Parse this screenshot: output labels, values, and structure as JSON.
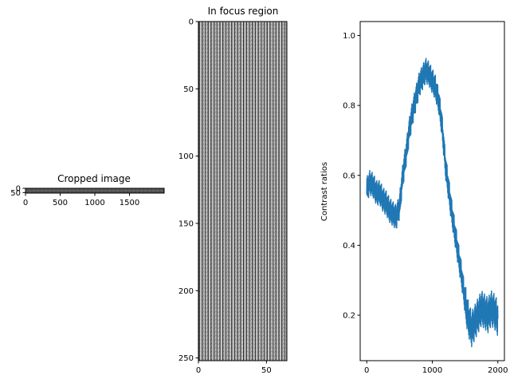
{
  "chart_data": [
    {
      "type": "heatmap",
      "title": "Cropped image",
      "xticks": [
        "0",
        "500",
        "1000",
        "1500"
      ],
      "yticks": [
        "0",
        "50"
      ],
      "xlim": [
        0,
        2000
      ],
      "ylim": [
        0,
        56
      ]
    },
    {
      "type": "heatmap",
      "title": "In focus region",
      "xticks": [
        "0",
        "50"
      ],
      "yticks": [
        "0",
        "50",
        "100",
        "150",
        "200",
        "250"
      ],
      "xlim": [
        0,
        65
      ],
      "ylim": [
        0,
        252
      ],
      "stripe_count": 30
    },
    {
      "type": "line",
      "title": "",
      "xlabel": "",
      "ylabel": "Contrast ratios",
      "xticks": [
        "0",
        "1000",
        "2000"
      ],
      "yticks": [
        "0.2",
        "0.4",
        "0.6",
        "0.8",
        "1.0"
      ],
      "xlim": [
        -100,
        2100
      ],
      "ylim": [
        0.07,
        1.04
      ],
      "color": "#1f77b4",
      "series": [
        {
          "x": [
            0,
            50,
            100,
            150,
            200,
            250,
            300,
            350,
            400,
            450,
            500,
            550,
            600,
            650,
            700,
            750,
            800,
            850,
            900,
            950,
            1000,
            1050,
            1100,
            1150,
            1200,
            1250,
            1300,
            1350,
            1400,
            1450,
            1500,
            1550,
            1600,
            1650,
            1700,
            1750,
            1800,
            1850,
            1900,
            1950,
            2000
          ],
          "y": [
            0.56,
            0.58,
            0.57,
            0.55,
            0.55,
            0.53,
            0.52,
            0.5,
            0.49,
            0.48,
            0.51,
            0.6,
            0.66,
            0.73,
            0.78,
            0.82,
            0.86,
            0.88,
            0.9,
            0.89,
            0.87,
            0.85,
            0.81,
            0.74,
            0.63,
            0.56,
            0.49,
            0.43,
            0.37,
            0.31,
            0.24,
            0.19,
            0.16,
            0.18,
            0.2,
            0.22,
            0.21,
            0.2,
            0.22,
            0.21,
            0.19
          ]
        }
      ]
    }
  ]
}
